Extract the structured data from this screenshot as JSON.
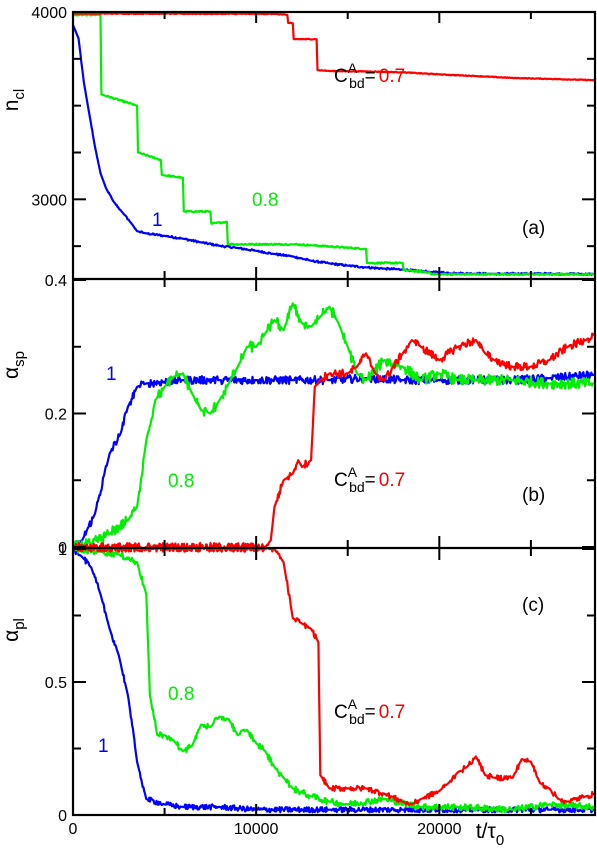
{
  "chart_data": [
    {
      "panel_label": "(a)",
      "type": "line",
      "ylabel": "n",
      "ylabel_sub": "cl",
      "xlim": [
        0,
        28500
      ],
      "ylim": [
        2580,
        4000
      ],
      "yticks": [
        {
          "v": 3000,
          "label": "3000"
        },
        {
          "v": 4000,
          "label": "4000"
        }
      ],
      "annotation": {
        "C": "C",
        "sup": "A",
        "sub": "bd",
        "eq": "=",
        "value": "0.7"
      },
      "series": [
        {
          "name": "1",
          "color": "#0000ff",
          "noise": 5,
          "points": [
            [
              0,
              3930
            ],
            [
              300,
              3860
            ],
            [
              600,
              3620
            ],
            [
              900,
              3450
            ],
            [
              1200,
              3280
            ],
            [
              1500,
              3140
            ],
            [
              1800,
              3060
            ],
            [
              2200,
              2990
            ],
            [
              2700,
              2930
            ],
            [
              3200,
              2870
            ],
            [
              3500,
              2830
            ],
            [
              4000,
              2818
            ],
            [
              5000,
              2805
            ],
            [
              6000,
              2790
            ],
            [
              7000,
              2770
            ],
            [
              8000,
              2752
            ],
            [
              9000,
              2740
            ],
            [
              10000,
              2725
            ],
            [
              11000,
              2708
            ],
            [
              12000,
              2695
            ],
            [
              13000,
              2672
            ],
            [
              14000,
              2658
            ],
            [
              15000,
              2646
            ],
            [
              16000,
              2637
            ],
            [
              17000,
              2630
            ],
            [
              18000,
              2625
            ],
            [
              19500,
              2612
            ],
            [
              21000,
              2605
            ],
            [
              23000,
              2602
            ],
            [
              25000,
              2603
            ],
            [
              27000,
              2602
            ],
            [
              28500,
              2600
            ]
          ]
        },
        {
          "name": "0.8",
          "color": "#00ee00",
          "noise": 4,
          "points": [
            [
              0,
              3985
            ],
            [
              1500,
              3985
            ],
            [
              1550,
              3560
            ],
            [
              3500,
              3500
            ],
            [
              3550,
              3250
            ],
            [
              4800,
              3210
            ],
            [
              4850,
              3130
            ],
            [
              6000,
              3115
            ],
            [
              6050,
              2935
            ],
            [
              7500,
              2935
            ],
            [
              7550,
              2870
            ],
            [
              8400,
              2880
            ],
            [
              8450,
              2760
            ],
            [
              12000,
              2760
            ],
            [
              13000,
              2755
            ],
            [
              16000,
              2735
            ],
            [
              16050,
              2660
            ],
            [
              18000,
              2660
            ],
            [
              18050,
              2622
            ],
            [
              19500,
              2610
            ],
            [
              19550,
              2600
            ],
            [
              28500,
              2600
            ]
          ]
        },
        {
          "name": "0.7",
          "color": "#ff0000",
          "noise": 2,
          "points": [
            [
              0,
              3992
            ],
            [
              11000,
              3990
            ],
            [
              11700,
              3985
            ],
            [
              11750,
              3942
            ],
            [
              12000,
              3940
            ],
            [
              12050,
              3855
            ],
            [
              13300,
              3855
            ],
            [
              13350,
              3690
            ],
            [
              14000,
              3685
            ],
            [
              16000,
              3683
            ],
            [
              18000,
              3678
            ],
            [
              20000,
              3667
            ],
            [
              22000,
              3658
            ],
            [
              24000,
              3648
            ],
            [
              26000,
              3643
            ],
            [
              28500,
              3636
            ]
          ]
        }
      ]
    },
    {
      "panel_label": "(b)",
      "type": "line",
      "ylabel": "α",
      "ylabel_sub": "sp",
      "xlim": [
        0,
        28500
      ],
      "ylim": [
        0,
        0.4
      ],
      "yticks": [
        {
          "v": 0,
          "label": "0"
        },
        {
          "v": 0.2,
          "label": "0.2"
        },
        {
          "v": 0.4,
          "label": "0.4"
        }
      ],
      "annotation": {
        "C": "C",
        "sup": "A",
        "sub": "bd",
        "eq": "=",
        "value": "0.7"
      },
      "series": [
        {
          "name": "1",
          "color": "#0000ff",
          "noise": 0.006,
          "points": [
            [
              0,
              0
            ],
            [
              500,
              0.01
            ],
            [
              1200,
              0.05
            ],
            [
              2000,
              0.14
            ],
            [
              2600,
              0.17
            ],
            [
              3000,
              0.21
            ],
            [
              3500,
              0.24
            ],
            [
              4000,
              0.245
            ],
            [
              6000,
              0.25
            ],
            [
              8000,
              0.25
            ],
            [
              10000,
              0.25
            ],
            [
              12000,
              0.25
            ],
            [
              14000,
              0.25
            ],
            [
              16000,
              0.253
            ],
            [
              18000,
              0.25
            ],
            [
              20000,
              0.25
            ],
            [
              22000,
              0.25
            ],
            [
              24000,
              0.25
            ],
            [
              26000,
              0.253
            ],
            [
              28500,
              0.258
            ]
          ]
        },
        {
          "name": "0.8",
          "color": "#00ee00",
          "noise": 0.008,
          "points": [
            [
              0,
              0
            ],
            [
              1000,
              0.005
            ],
            [
              2000,
              0.02
            ],
            [
              3000,
              0.04
            ],
            [
              3500,
              0.06
            ],
            [
              4000,
              0.16
            ],
            [
              4500,
              0.22
            ],
            [
              5000,
              0.24
            ],
            [
              5500,
              0.255
            ],
            [
              6000,
              0.26
            ],
            [
              6500,
              0.23
            ],
            [
              7000,
              0.205
            ],
            [
              7500,
              0.2
            ],
            [
              8000,
              0.22
            ],
            [
              8500,
              0.245
            ],
            [
              9000,
              0.27
            ],
            [
              9500,
              0.3
            ],
            [
              10000,
              0.3
            ],
            [
              10500,
              0.32
            ],
            [
              11000,
              0.34
            ],
            [
              11500,
              0.325
            ],
            [
              12000,
              0.365
            ],
            [
              12500,
              0.335
            ],
            [
              13000,
              0.33
            ],
            [
              13500,
              0.345
            ],
            [
              14000,
              0.36
            ],
            [
              14500,
              0.335
            ],
            [
              15000,
              0.3
            ],
            [
              15500,
              0.26
            ],
            [
              16000,
              0.25
            ],
            [
              17000,
              0.28
            ],
            [
              18000,
              0.27
            ],
            [
              19000,
              0.25
            ],
            [
              20000,
              0.26
            ],
            [
              21000,
              0.25
            ],
            [
              22000,
              0.25
            ],
            [
              24000,
              0.25
            ],
            [
              26000,
              0.245
            ],
            [
              28500,
              0.245
            ]
          ]
        },
        {
          "name": "0.7",
          "color": "#ff0000",
          "noise": 0.006,
          "points": [
            [
              0,
              0
            ],
            [
              10500,
              0
            ],
            [
              10800,
              0.01
            ],
            [
              11000,
              0.06
            ],
            [
              11500,
              0.1
            ],
            [
              12000,
              0.11
            ],
            [
              12300,
              0.13
            ],
            [
              12500,
              0.12
            ],
            [
              13000,
              0.13
            ],
            [
              13200,
              0.24
            ],
            [
              13500,
              0.25
            ],
            [
              14000,
              0.26
            ],
            [
              15000,
              0.26
            ],
            [
              15500,
              0.27
            ],
            [
              16000,
              0.29
            ],
            [
              16500,
              0.26
            ],
            [
              17000,
              0.25
            ],
            [
              18000,
              0.29
            ],
            [
              18500,
              0.31
            ],
            [
              19000,
              0.3
            ],
            [
              20000,
              0.28
            ],
            [
              21000,
              0.3
            ],
            [
              22000,
              0.31
            ],
            [
              22500,
              0.29
            ],
            [
              23000,
              0.28
            ],
            [
              24000,
              0.27
            ],
            [
              25000,
              0.27
            ],
            [
              26000,
              0.28
            ],
            [
              27000,
              0.3
            ],
            [
              28000,
              0.31
            ],
            [
              28500,
              0.32
            ]
          ]
        }
      ]
    },
    {
      "panel_label": "(c)",
      "type": "line",
      "ylabel": "α",
      "ylabel_sub": "pl",
      "xlabel": "t/τ",
      "xlabel_sub": "0",
      "xlim": [
        0,
        28500
      ],
      "ylim": [
        0,
        1
      ],
      "xticks": [
        {
          "v": 0,
          "label": "0"
        },
        {
          "v": 10000,
          "label": "10000"
        },
        {
          "v": 20000,
          "label": "20000"
        }
      ],
      "yticks": [
        {
          "v": 0,
          "label": "0"
        },
        {
          "v": 0.5,
          "label": "0.5"
        },
        {
          "v": 1,
          "label": "1"
        }
      ],
      "annotation": {
        "C": "C",
        "sup": "A",
        "sub": "bd",
        "eq": "=",
        "value": "0.7"
      },
      "series": [
        {
          "name": "1",
          "color": "#0000ff",
          "noise": 0.01,
          "points": [
            [
              0,
              1
            ],
            [
              500,
              0.97
            ],
            [
              1000,
              0.93
            ],
            [
              1500,
              0.83
            ],
            [
              2000,
              0.7
            ],
            [
              2500,
              0.6
            ],
            [
              3000,
              0.45
            ],
            [
              3500,
              0.2
            ],
            [
              4000,
              0.06
            ],
            [
              5000,
              0.04
            ],
            [
              6000,
              0.03
            ],
            [
              8000,
              0.03
            ],
            [
              10000,
              0.02
            ],
            [
              14000,
              0.02
            ],
            [
              18000,
              0.02
            ],
            [
              22000,
              0.02
            ],
            [
              26000,
              0.02
            ],
            [
              28500,
              0.02
            ]
          ]
        },
        {
          "name": "0.8",
          "color": "#00ee00",
          "noise": 0.012,
          "points": [
            [
              0,
              1
            ],
            [
              1500,
              0.99
            ],
            [
              2500,
              0.98
            ],
            [
              3500,
              0.95
            ],
            [
              4000,
              0.83
            ],
            [
              4200,
              0.45
            ],
            [
              4600,
              0.3
            ],
            [
              5000,
              0.3
            ],
            [
              5500,
              0.28
            ],
            [
              6000,
              0.24
            ],
            [
              6500,
              0.26
            ],
            [
              7000,
              0.34
            ],
            [
              7500,
              0.33
            ],
            [
              8000,
              0.37
            ],
            [
              8500,
              0.36
            ],
            [
              9000,
              0.3
            ],
            [
              9500,
              0.32
            ],
            [
              10000,
              0.27
            ],
            [
              10500,
              0.24
            ],
            [
              11000,
              0.18
            ],
            [
              11500,
              0.14
            ],
            [
              12000,
              0.1
            ],
            [
              13000,
              0.07
            ],
            [
              14000,
              0.05
            ],
            [
              15000,
              0.04
            ],
            [
              17000,
              0.06
            ],
            [
              19000,
              0.03
            ],
            [
              21000,
              0.03
            ],
            [
              24000,
              0.02
            ],
            [
              26000,
              0.04
            ],
            [
              28500,
              0.03
            ]
          ]
        },
        {
          "name": "0.7",
          "color": "#ff0000",
          "noise": 0.01,
          "points": [
            [
              0,
              1
            ],
            [
              11000,
              1
            ],
            [
              11500,
              0.95
            ],
            [
              12000,
              0.74
            ],
            [
              12500,
              0.72
            ],
            [
              13000,
              0.7
            ],
            [
              13400,
              0.65
            ],
            [
              13500,
              0.15
            ],
            [
              14000,
              0.1
            ],
            [
              15000,
              0.1
            ],
            [
              16000,
              0.1
            ],
            [
              17000,
              0.08
            ],
            [
              18000,
              0.05
            ],
            [
              18500,
              0.04
            ],
            [
              19000,
              0.06
            ],
            [
              20000,
              0.09
            ],
            [
              20500,
              0.12
            ],
            [
              21000,
              0.16
            ],
            [
              21500,
              0.18
            ],
            [
              22000,
              0.22
            ],
            [
              22500,
              0.15
            ],
            [
              23000,
              0.14
            ],
            [
              24000,
              0.14
            ],
            [
              24500,
              0.21
            ],
            [
              25000,
              0.2
            ],
            [
              25500,
              0.12
            ],
            [
              26000,
              0.1
            ],
            [
              26500,
              0.06
            ],
            [
              27000,
              0.05
            ],
            [
              28000,
              0.07
            ],
            [
              28500,
              0.08
            ]
          ]
        }
      ]
    }
  ]
}
